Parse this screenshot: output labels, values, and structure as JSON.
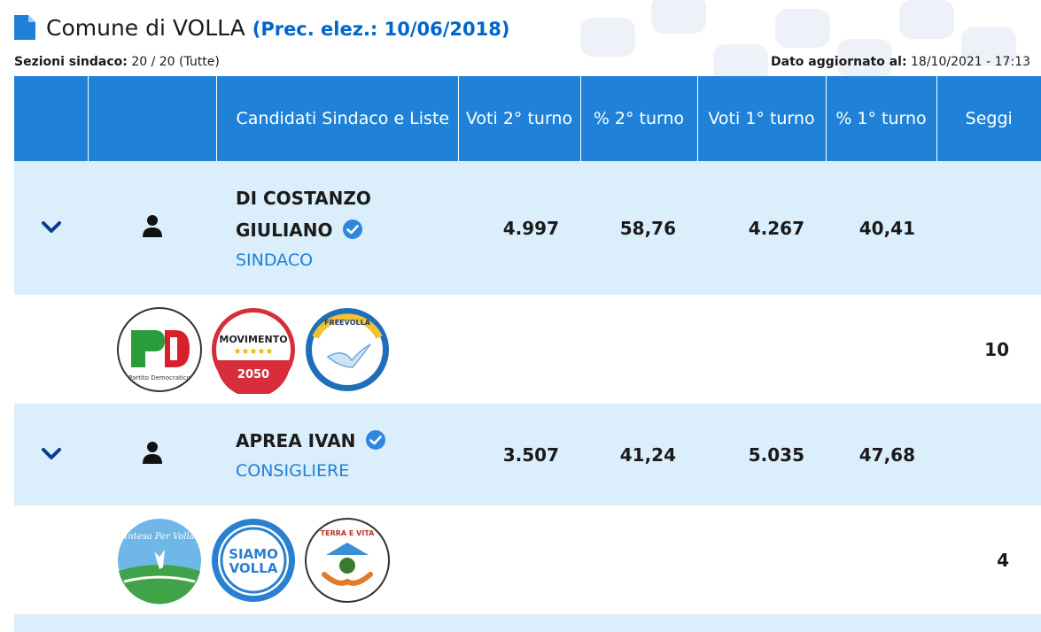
{
  "header": {
    "title": "Comune di VOLLA",
    "prec": "(Prec. elez.: 10/06/2018)"
  },
  "meta": {
    "sezioni_label": "Sezioni sindaco:",
    "sezioni_value": "20 / 20 (Tutte)",
    "dato_label": "Dato aggiornato al:",
    "dato_value": "18/10/2021 - 17:13"
  },
  "table": {
    "columns": [
      "",
      "",
      "Candidati Sindaco e Liste",
      "Voti 2° turno",
      "% 2° turno",
      "Voti 1° turno",
      "% 1° turno",
      "Seggi"
    ],
    "candidates": [
      {
        "name_line1": "DI COSTANZO",
        "name_line2": "GIULIANO",
        "role": "SINDACO",
        "voti2": "4.997",
        "perc2": "58,76",
        "voti1": "4.267",
        "perc1": "40,41",
        "seggi": "10",
        "logos": [
          {
            "icon": "pd-logo",
            "text": "PD",
            "subtext": "Partito Democratico"
          },
          {
            "icon": "movimento-2050-logo",
            "text": "MOVIMENTO",
            "subtext": "2050"
          },
          {
            "icon": "freevolla-logo",
            "text": "FREEVOLLA"
          }
        ]
      },
      {
        "name_line1": "APREA IVAN",
        "role": "CONSIGLIERE",
        "voti2": "3.507",
        "perc2": "41,24",
        "voti1": "5.035",
        "perc1": "47,68",
        "seggi": "4",
        "logos": [
          {
            "icon": "intesa-per-volla-logo",
            "text": "Intesa Per Volla"
          },
          {
            "icon": "siamo-volla-logo",
            "text": "SIAMO",
            "subtext": "VOLLA"
          },
          {
            "icon": "terra-e-vita-logo",
            "text": "TERRA E VITA"
          }
        ]
      }
    ]
  },
  "colors": {
    "header_blue": "#1f82d8",
    "row_light_blue": "#dbeefb",
    "role_blue": "#1f82d8",
    "chevron_navy": "#0b3d91"
  }
}
